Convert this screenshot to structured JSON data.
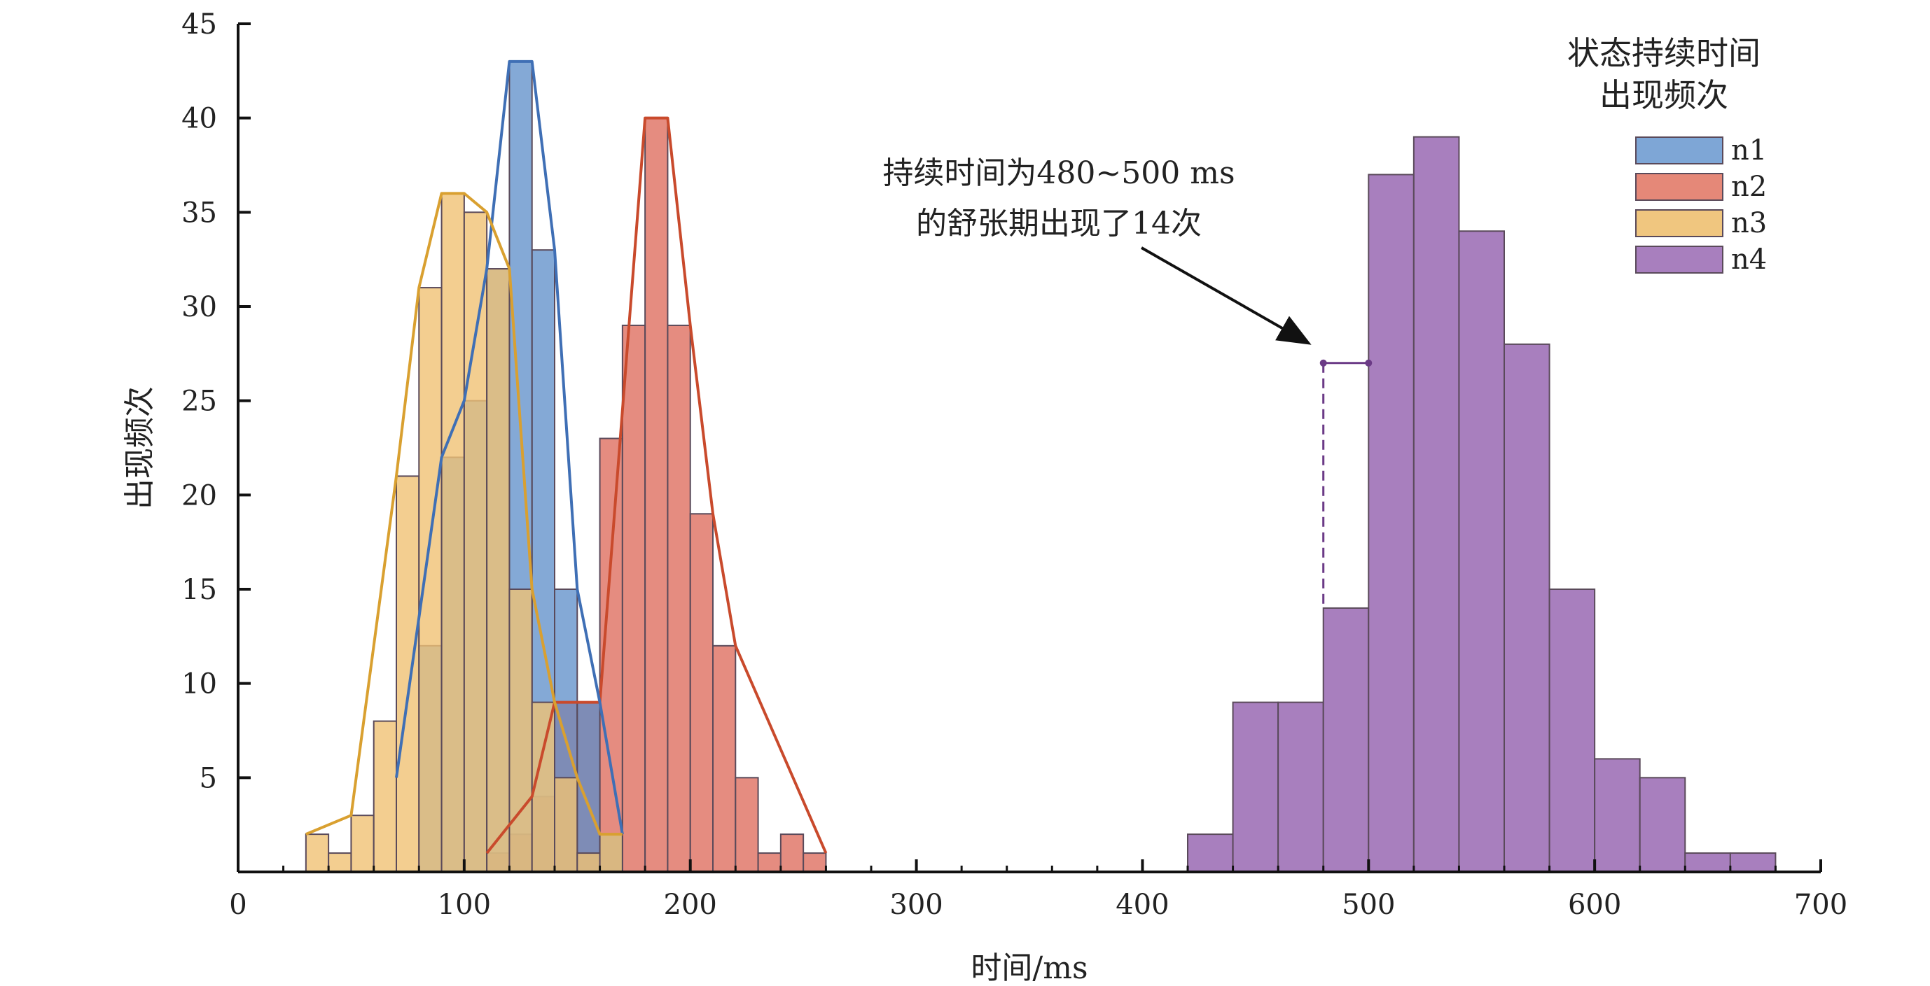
{
  "chart_data": {
    "type": "bar",
    "subtype": "overlapping histogram with frequency polygons",
    "xlabel": "时间/ms",
    "ylabel": "出现频次",
    "xlim": [
      0,
      700
    ],
    "ylim": [
      0,
      45
    ],
    "xticks": [
      0,
      100,
      200,
      300,
      400,
      500,
      600,
      700
    ],
    "yticks": [
      5,
      10,
      15,
      20,
      25,
      30,
      35,
      40,
      45
    ],
    "bin_width": 10,
    "grid": false,
    "legend": {
      "title_line1": "状态持续时间",
      "title_line2": "出现频次",
      "placement": "top-right"
    },
    "series": [
      {
        "name": "n1",
        "color": "#5b8cc8",
        "fill_opacity": 0.75,
        "bins": [
          [
            70,
            0
          ],
          [
            80,
            12
          ],
          [
            90,
            22
          ],
          [
            100,
            25
          ],
          [
            110,
            32
          ],
          [
            120,
            43
          ],
          [
            130,
            33
          ],
          [
            140,
            15
          ],
          [
            150,
            9
          ],
          [
            160,
            2
          ]
        ],
        "polygon": [
          [
            70,
            5
          ],
          [
            90,
            22
          ],
          [
            100,
            25
          ],
          [
            110,
            32
          ],
          [
            120,
            43
          ],
          [
            130,
            43
          ],
          [
            140,
            33
          ],
          [
            150,
            15
          ],
          [
            160,
            9
          ],
          [
            170,
            2
          ]
        ]
      },
      {
        "name": "n2",
        "color": "#e0786a",
        "fill_opacity": 0.85,
        "bins": [
          [
            110,
            1
          ],
          [
            120,
            2
          ],
          [
            130,
            4
          ],
          [
            140,
            9
          ],
          [
            150,
            9
          ],
          [
            160,
            23
          ],
          [
            170,
            29
          ],
          [
            180,
            40
          ],
          [
            190,
            29
          ],
          [
            200,
            19
          ],
          [
            210,
            12
          ],
          [
            220,
            5
          ],
          [
            230,
            1
          ],
          [
            240,
            2
          ],
          [
            250,
            1
          ]
        ],
        "polygon": [
          [
            110,
            1
          ],
          [
            130,
            4
          ],
          [
            140,
            9
          ],
          [
            160,
            9
          ],
          [
            180,
            40
          ],
          [
            190,
            40
          ],
          [
            200,
            29
          ],
          [
            210,
            19
          ],
          [
            220,
            12
          ],
          [
            260,
            1
          ]
        ]
      },
      {
        "name": "n3",
        "color": "#f0c274",
        "fill_opacity": 0.8,
        "bins": [
          [
            30,
            2
          ],
          [
            40,
            1
          ],
          [
            50,
            3
          ],
          [
            60,
            8
          ],
          [
            70,
            21
          ],
          [
            80,
            31
          ],
          [
            90,
            36
          ],
          [
            100,
            35
          ],
          [
            110,
            32
          ],
          [
            120,
            15
          ],
          [
            130,
            9
          ],
          [
            140,
            5
          ],
          [
            150,
            1
          ],
          [
            160,
            2
          ]
        ],
        "polygon": [
          [
            30,
            2
          ],
          [
            50,
            3
          ],
          [
            70,
            21
          ],
          [
            80,
            31
          ],
          [
            90,
            36
          ],
          [
            100,
            36
          ],
          [
            110,
            35
          ],
          [
            120,
            32
          ],
          [
            130,
            15
          ],
          [
            140,
            9
          ],
          [
            150,
            5
          ],
          [
            160,
            2
          ],
          [
            170,
            2
          ]
        ]
      },
      {
        "name": "n4",
        "color": "#a87fbe",
        "fill_opacity": 1,
        "bins": [
          [
            420,
            2
          ],
          [
            440,
            9
          ],
          [
            460,
            9
          ],
          [
            480,
            14
          ],
          [
            500,
            37
          ],
          [
            520,
            39
          ],
          [
            540,
            34
          ],
          [
            560,
            28
          ],
          [
            580,
            15
          ],
          [
            600,
            6
          ],
          [
            620,
            5
          ],
          [
            640,
            1
          ],
          [
            660,
            1
          ]
        ],
        "bin_width": 20
      }
    ],
    "annotation": {
      "line1": "持续时间为480~500 ms",
      "line2": "的舒张期出现了14次",
      "target_x": [
        480,
        500
      ],
      "target_y": 27,
      "target_value": 14
    }
  }
}
